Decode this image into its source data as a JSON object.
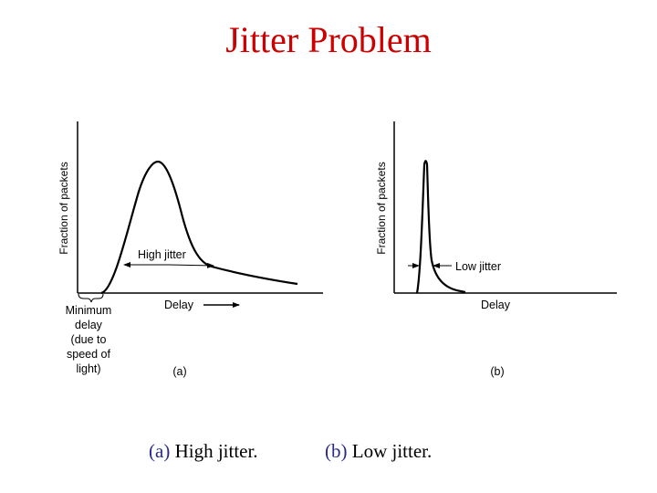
{
  "title": "Jitter Problem",
  "panel_a": {
    "ylabel": "Fraction of packets",
    "xlabel": "Delay",
    "annotation": "High jitter",
    "min_delay_lines": [
      "Minimum",
      "delay",
      "(due to",
      "speed of",
      "light)"
    ],
    "panel_label": "(a)"
  },
  "panel_b": {
    "ylabel": "Fraction of packets",
    "xlabel": "Delay",
    "annotation": "Low jitter",
    "panel_label": "(b)"
  },
  "captions": {
    "a": {
      "tag": "(a)",
      "text": " High jitter."
    },
    "b": {
      "tag": "(b)",
      "text": " Low jitter."
    }
  },
  "colors": {
    "title": "#cc0000",
    "caption_tag": "#2a2a8a",
    "line": "#000000"
  }
}
